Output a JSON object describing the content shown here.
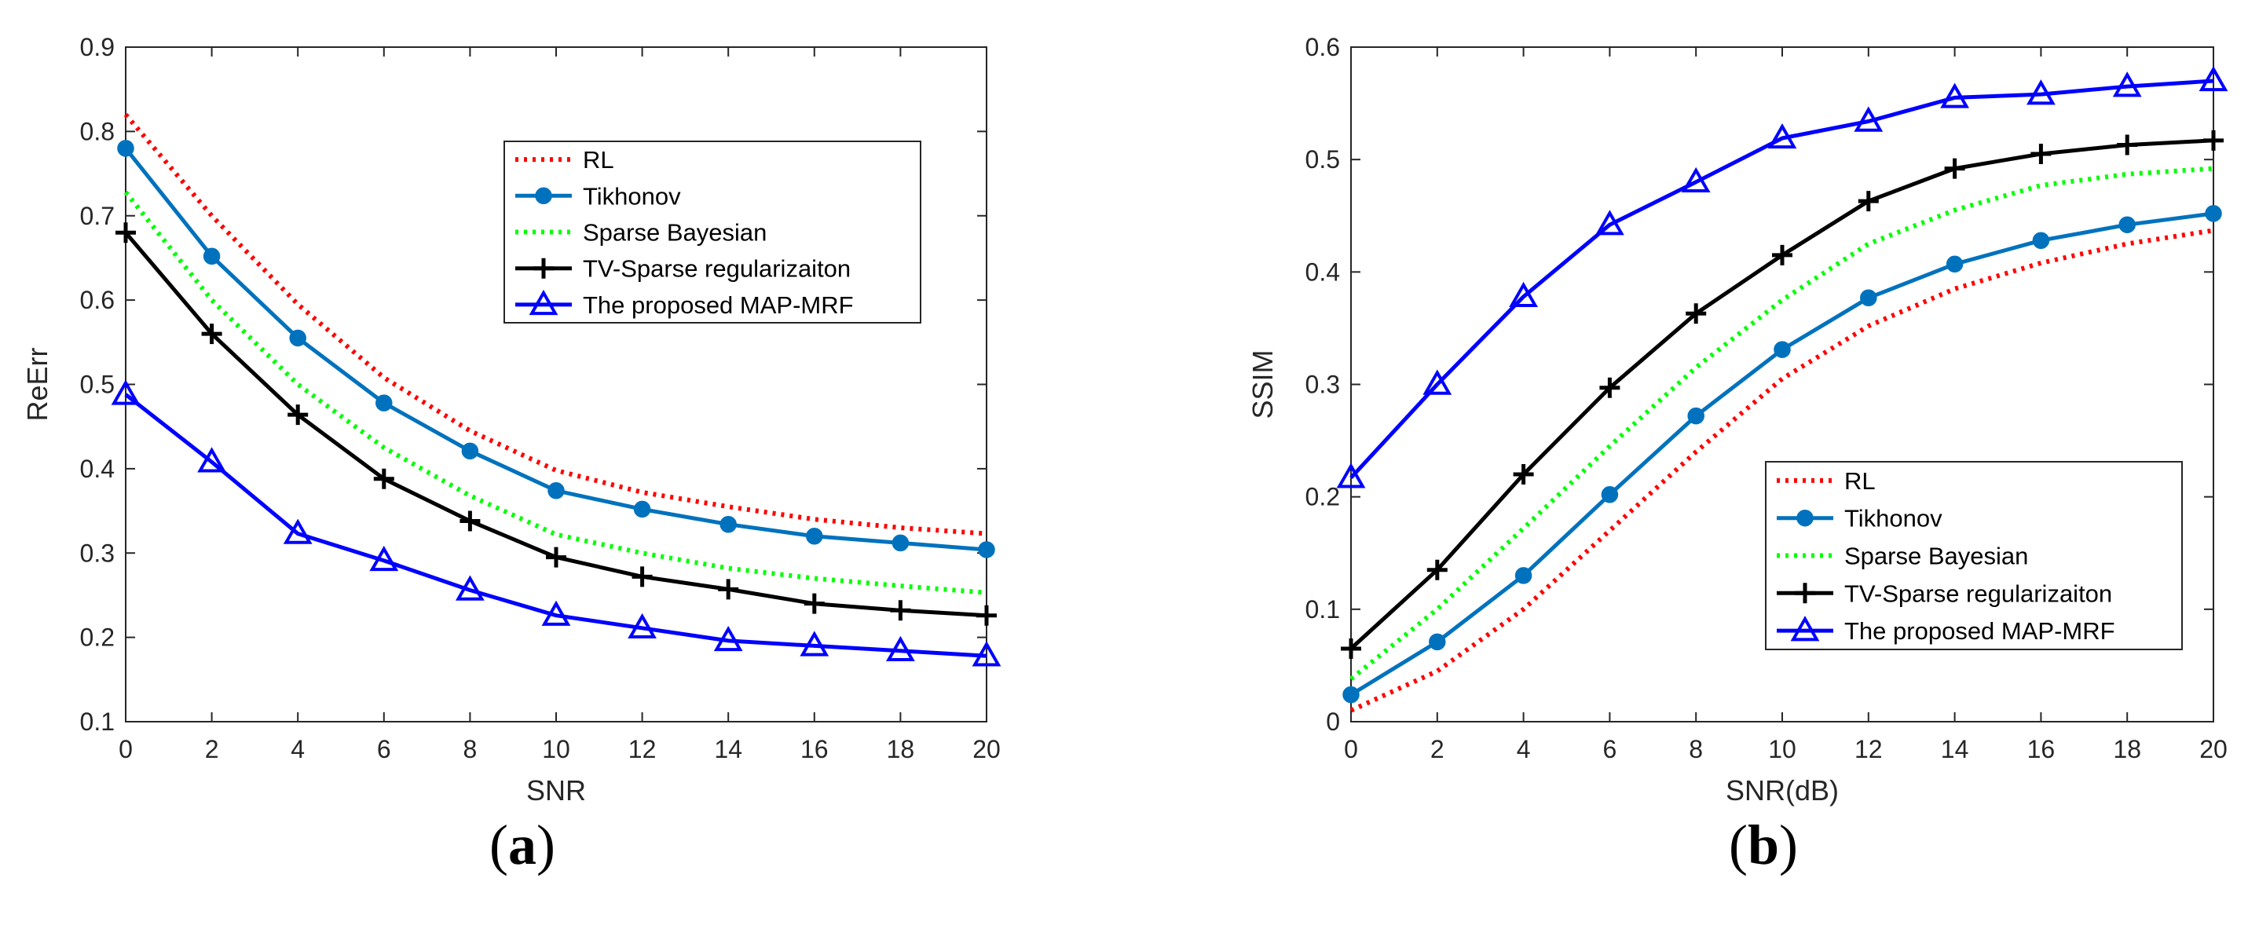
{
  "chart_data": [
    {
      "type": "line",
      "panel_label_open": "(",
      "panel_label": "a",
      "panel_label_close": ")",
      "title": "",
      "xlabel": "SNR",
      "ylabel": "ReErr",
      "xlim": [
        0,
        20
      ],
      "ylim": [
        0.1,
        0.9
      ],
      "xticks": [
        0,
        2,
        4,
        6,
        8,
        10,
        12,
        14,
        16,
        18,
        20
      ],
      "yticks": [
        0.1,
        0.2,
        0.3,
        0.4,
        0.5,
        0.6,
        0.7,
        0.8,
        0.9
      ],
      "ytick_labels": [
        "0.1",
        "0.2",
        "0.3",
        "0.4",
        "0.5",
        "0.6",
        "0.7",
        "0.8",
        "0.9"
      ],
      "grid": false,
      "legend_position": "top-right",
      "x": [
        0,
        2,
        4,
        6,
        8,
        10,
        12,
        14,
        16,
        18,
        20
      ],
      "series": [
        {
          "name": "RL",
          "color": "#ff0000",
          "style": "dotted",
          "marker": "none",
          "values": [
            0.82,
            0.7,
            0.595,
            0.508,
            0.445,
            0.398,
            0.372,
            0.355,
            0.34,
            0.33,
            0.323
          ]
        },
        {
          "name": "Tikhonov",
          "color": "#0072bd",
          "style": "solid",
          "marker": "circle",
          "values": [
            0.78,
            0.652,
            0.555,
            0.478,
            0.421,
            0.374,
            0.352,
            0.334,
            0.32,
            0.312,
            0.304
          ]
        },
        {
          "name": "Sparse Bayesian",
          "color": "#00ff00",
          "style": "dotted",
          "marker": "none",
          "values": [
            0.728,
            0.6,
            0.5,
            0.425,
            0.368,
            0.322,
            0.3,
            0.282,
            0.27,
            0.261,
            0.253
          ]
        },
        {
          "name": "TV-Sparse regularizaiton",
          "color": "#000000",
          "style": "solid",
          "marker": "plus",
          "values": [
            0.68,
            0.56,
            0.464,
            0.388,
            0.338,
            0.295,
            0.272,
            0.257,
            0.24,
            0.232,
            0.226
          ]
        },
        {
          "name": "The proposed MAP-MRF",
          "color": "#0000ff",
          "style": "solid",
          "marker": "triangle",
          "values": [
            0.488,
            0.408,
            0.323,
            0.291,
            0.256,
            0.226,
            0.211,
            0.196,
            0.19,
            0.184,
            0.178
          ]
        }
      ]
    },
    {
      "type": "line",
      "panel_label_open": "(",
      "panel_label": "b",
      "panel_label_close": ")",
      "title": "",
      "xlabel": "SNR(dB)",
      "ylabel": "SSIM",
      "xlim": [
        0,
        20
      ],
      "ylim": [
        0,
        0.6
      ],
      "xticks": [
        0,
        2,
        4,
        6,
        8,
        10,
        12,
        14,
        16,
        18,
        20
      ],
      "yticks": [
        0,
        0.1,
        0.2,
        0.3,
        0.4,
        0.5,
        0.6
      ],
      "ytick_labels": [
        "0",
        "0.1",
        "0.2",
        "0.3",
        "0.4",
        "0.5",
        "0.6"
      ],
      "grid": false,
      "legend_position": "bottom-right",
      "x": [
        0,
        2,
        4,
        6,
        8,
        10,
        12,
        14,
        16,
        18,
        20
      ],
      "series": [
        {
          "name": "RL",
          "color": "#ff0000",
          "style": "dotted",
          "marker": "none",
          "values": [
            0.01,
            0.045,
            0.1,
            0.17,
            0.24,
            0.305,
            0.352,
            0.385,
            0.408,
            0.425,
            0.437
          ]
        },
        {
          "name": "Tikhonov",
          "color": "#0072bd",
          "style": "solid",
          "marker": "circle",
          "values": [
            0.024,
            0.071,
            0.13,
            0.202,
            0.272,
            0.331,
            0.377,
            0.407,
            0.428,
            0.442,
            0.452
          ]
        },
        {
          "name": "Sparse Bayesian",
          "color": "#00ff00",
          "style": "dotted",
          "marker": "none",
          "values": [
            0.038,
            0.1,
            0.172,
            0.245,
            0.315,
            0.375,
            0.425,
            0.455,
            0.477,
            0.487,
            0.492
          ]
        },
        {
          "name": "TV-Sparse regularizaiton",
          "color": "#000000",
          "style": "solid",
          "marker": "plus",
          "values": [
            0.065,
            0.135,
            0.22,
            0.297,
            0.363,
            0.415,
            0.463,
            0.492,
            0.505,
            0.513,
            0.517
          ]
        },
        {
          "name": "The proposed MAP-MRF",
          "color": "#0000ff",
          "style": "solid",
          "marker": "triangle",
          "values": [
            0.217,
            0.3,
            0.378,
            0.442,
            0.48,
            0.519,
            0.534,
            0.555,
            0.558,
            0.565,
            0.57
          ]
        }
      ]
    }
  ]
}
